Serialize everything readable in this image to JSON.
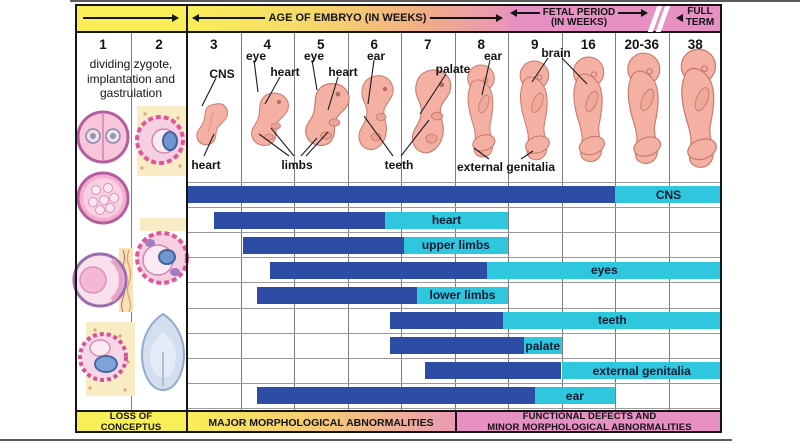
{
  "header": {
    "embryo_band_label": "AGE OF EMBRYO (IN WEEKS)",
    "fetal_band_label_1": "FETAL PERIOD",
    "fetal_band_label_2": "(IN WEEKS)",
    "full_term_label_1": "FULL",
    "full_term_label_2": "TERM"
  },
  "weeks": [
    "1",
    "2",
    "3",
    "4",
    "5",
    "6",
    "7",
    "8",
    "9",
    "16",
    "20-36",
    "38"
  ],
  "left_note_lines": [
    "dividing zygote,",
    "implantation and",
    "gastrulation"
  ],
  "organ_labels": {
    "cns": "CNS",
    "heart_3": "heart",
    "eye_4": "eye",
    "heart_4": "heart",
    "eye_5": "eye",
    "heart_5": "heart",
    "limbs": "limbs",
    "ear_6": "ear",
    "teeth": "teeth",
    "palate": "palate",
    "ear_8": "ear",
    "external_genitalia": "external genitalia",
    "brain": "brain"
  },
  "chart_data": {
    "type": "gantt",
    "columns": [
      "1",
      "2",
      "3",
      "4",
      "5",
      "6",
      "7",
      "8",
      "9",
      "16",
      "20-36",
      "38"
    ],
    "colors": {
      "highly_sensitive": "#2d4da4",
      "less_sensitive": "#2fc7dd"
    },
    "bars": [
      {
        "label": "CNS",
        "dark_weeks": [
          3,
          16
        ],
        "light_weeks": [
          16,
          38
        ],
        "dark_u": [
          2,
          10
        ],
        "light_u": [
          10,
          12
        ]
      },
      {
        "label": "heart",
        "dark_weeks": [
          3.5,
          6.5
        ],
        "light_weeks": [
          6.5,
          8
        ],
        "dark_u": [
          2.5,
          5.7
        ],
        "light_u": [
          5.7,
          8
        ]
      },
      {
        "label": "upper limbs",
        "dark_weeks": [
          4,
          7
        ],
        "light_weeks": [
          7,
          8
        ],
        "dark_u": [
          3.05,
          6.05
        ],
        "light_u": [
          6.05,
          8
        ]
      },
      {
        "label": "eyes",
        "dark_weeks": [
          4.5,
          8.5
        ],
        "light_weeks": [
          8.5,
          38
        ],
        "dark_u": [
          3.55,
          7.6
        ],
        "light_u": [
          7.6,
          12
        ]
      },
      {
        "label": "lower limbs",
        "dark_weeks": [
          4.3,
          7.3
        ],
        "light_weeks": [
          7.3,
          8
        ],
        "dark_u": [
          3.3,
          6.3
        ],
        "light_u": [
          6.3,
          8
        ]
      },
      {
        "label": "teeth",
        "dark_weeks": [
          6.8,
          8
        ],
        "light_weeks": [
          8,
          38
        ],
        "dark_u": [
          5.8,
          7.9
        ],
        "light_u": [
          7.9,
          12
        ]
      },
      {
        "label": "palate",
        "dark_weeks": [
          6.8,
          9
        ],
        "light_weeks": [
          9,
          16
        ],
        "dark_u": [
          5.8,
          8.3
        ],
        "light_u": [
          8.3,
          9
        ]
      },
      {
        "label": "external genitalia",
        "dark_weeks": [
          7.5,
          9
        ],
        "light_weeks": [
          9,
          38
        ],
        "dark_u": [
          6.45,
          9
        ],
        "light_u": [
          9,
          12
        ]
      },
      {
        "label": "ear",
        "dark_weeks": [
          4.3,
          9.5
        ],
        "light_weeks": [
          9.5,
          16
        ],
        "dark_u": [
          3.3,
          8.5
        ],
        "light_u": [
          8.5,
          10
        ]
      }
    ]
  },
  "footer": {
    "loss_lines": [
      "LOSS OF",
      "CONCEPTUS"
    ],
    "major_label": "MAJOR MORPHOLOGICAL ABNORMALITIES",
    "functional_lines": [
      "FUNCTIONAL DEFECTS AND",
      "MINOR MORPHOLOGICAL ABNORMALITIES"
    ]
  }
}
